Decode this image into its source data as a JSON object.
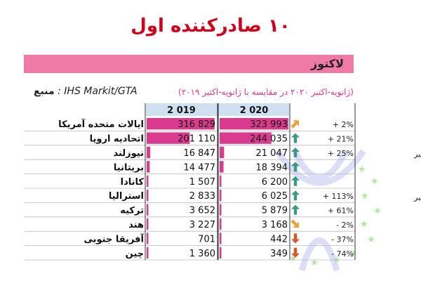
{
  "title": "۱۰ صادرکننده اول",
  "banner": "لاکتوز",
  "source_org": ": IHS Markit/GTA",
  "source_label": "منبع",
  "period": "(ژانویه-اکتبر ۲۰۲۰ در مقایسه با ژانویه-اکتبر ۲۰۱۹)",
  "colors": {
    "bar": "#d4197a",
    "header": "#cfe0f1",
    "banner": "#f07aa6",
    "title": "#d0021b",
    "arrow_up": "#3a9a83",
    "arrow_flat": "#e7a43a",
    "arrow_down": "#d95926"
  },
  "chart_data": {
    "type": "bar",
    "title": "۱۰ صادرکننده اول",
    "xlabel": "",
    "ylabel": "",
    "categories": [
      "ایالات متحده آمریکا",
      "اتحادیه اروپا",
      "نیوزلند",
      "بریتانیا",
      "کانادا",
      "استرالیا",
      "ترکیه",
      "هند",
      "آفریقا جنوبی",
      "چین"
    ],
    "series": [
      {
        "name": "2 019",
        "values": [
          316829,
          201110,
          16847,
          14477,
          1507,
          2833,
          3652,
          3227,
          701,
          1360
        ],
        "labels": [
          "316 829",
          "201 110",
          "16 847",
          "14 477",
          "1 507",
          "2 833",
          "3 652",
          "3 227",
          "701",
          "1 360"
        ]
      },
      {
        "name": "2 020",
        "values": [
          323993,
          244035,
          21047,
          18394,
          6200,
          6025,
          5879,
          3168,
          442,
          349
        ],
        "labels": [
          "323 993",
          "244 035",
          "21 047",
          "18 394",
          "6 200",
          "6 025",
          "5 879",
          "3 168",
          "442",
          "349"
        ]
      }
    ],
    "trend": [
      "up-right",
      "up",
      "up",
      "up",
      "up",
      "up",
      "up",
      "down-right",
      "down",
      "down"
    ],
    "change": [
      "+ 2%",
      "+ 21%",
      "+ 25%",
      "",
      "",
      "+ 113%",
      "+ 61%",
      "- 2%",
      "- 37%",
      "- 74%"
    ],
    "notes": [
      {
        "row": 3,
        "text": "تا انتهای سپتامبر"
      },
      {
        "row": 6,
        "text": "تا انتهای سپتامبر"
      }
    ],
    "xlim": [
      0,
      324000
    ]
  }
}
